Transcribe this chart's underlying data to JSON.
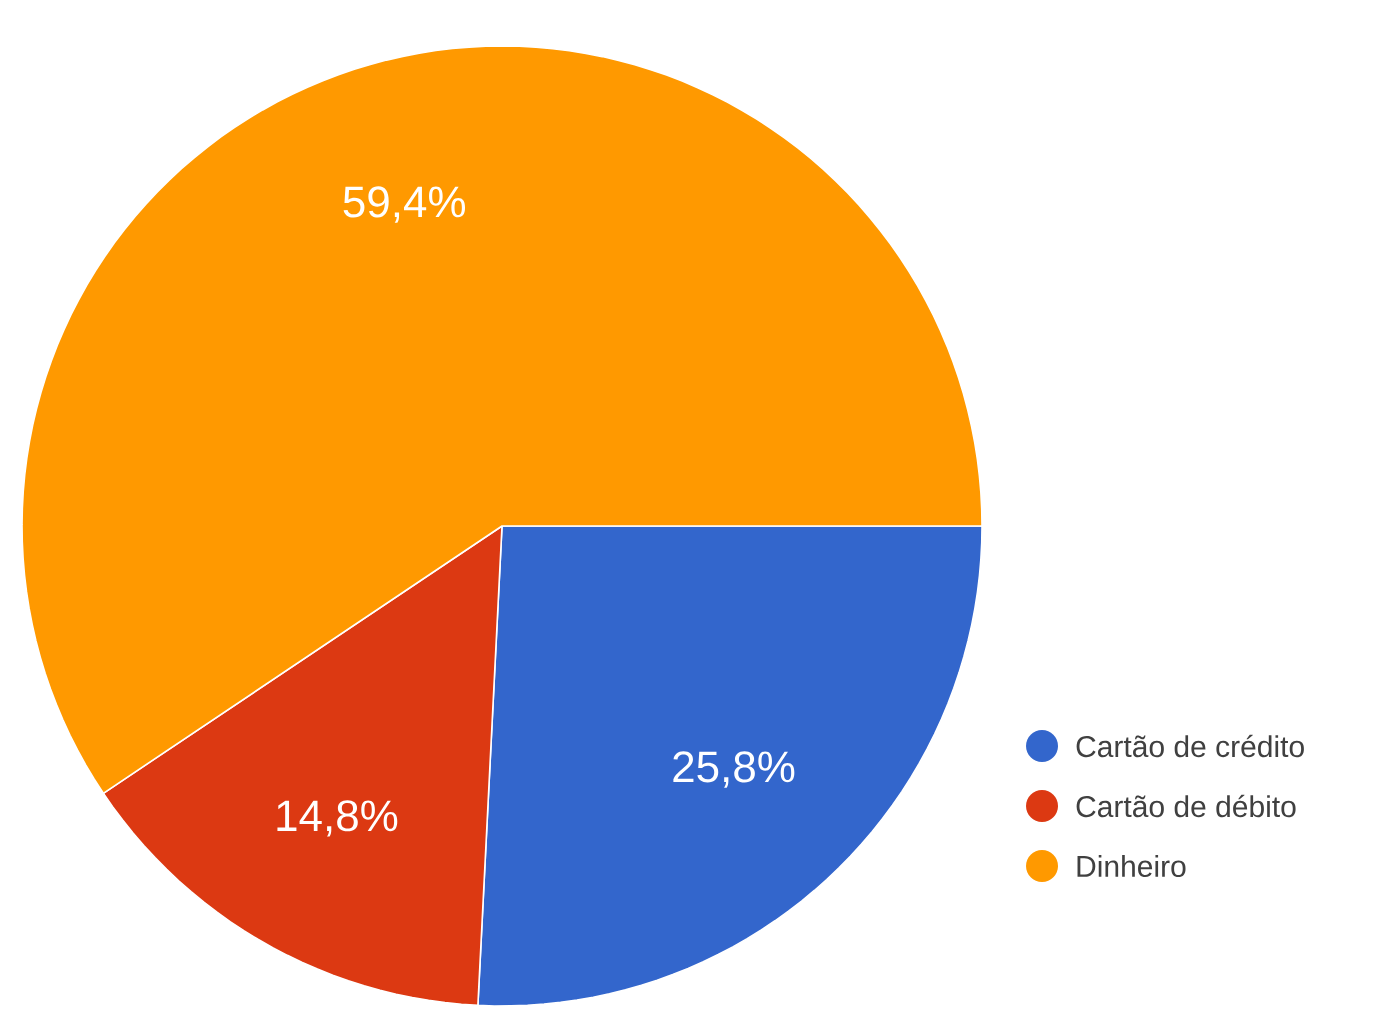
{
  "chart_data": {
    "type": "pie",
    "categories": [
      "Cartão de crédito",
      "Cartão de débito",
      "Dinheiro"
    ],
    "values": [
      25.8,
      14.8,
      59.4
    ],
    "colors": [
      "#3366cc",
      "#dc3912",
      "#ff9900"
    ],
    "value_labels": [
      "25,8%",
      "14,8%",
      "59,4%"
    ],
    "legend": "bottom right"
  }
}
